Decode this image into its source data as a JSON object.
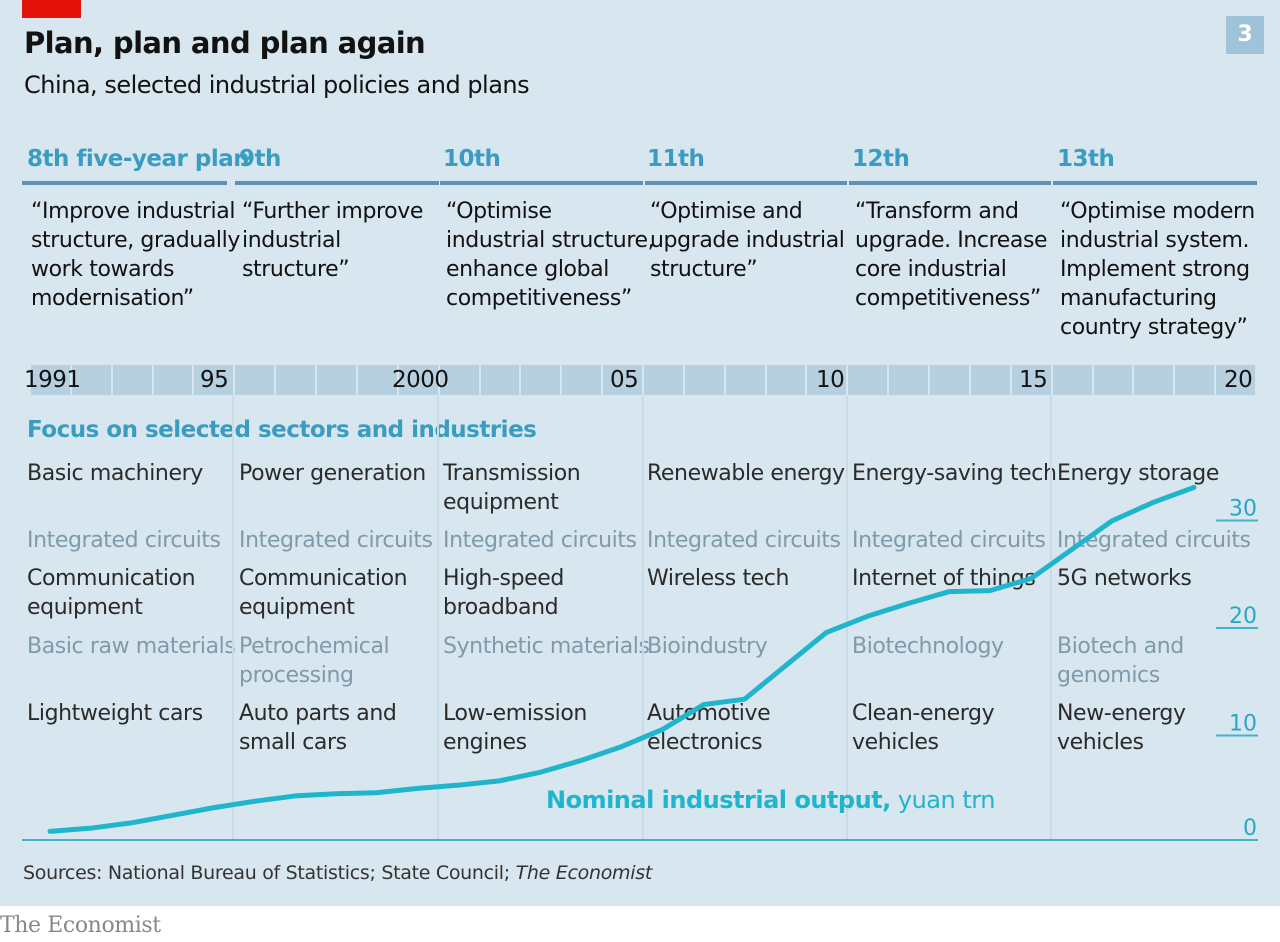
{
  "header": {
    "title": "Plan, plan and plan again",
    "subtitle": "China, selected industrial policies and plans",
    "chart_number": "3"
  },
  "plans": [
    {
      "label": "8th five-year plan",
      "goal": [
        "“Improve industrial",
        "structure, gradually",
        "work towards",
        "modernisation”"
      ]
    },
    {
      "label": "9th",
      "goal": [
        "“Further improve",
        "industrial",
        "structure”"
      ]
    },
    {
      "label": "10th",
      "goal": [
        "“Optimise",
        "industrial structure,",
        "enhance global",
        "competitiveness”"
      ]
    },
    {
      "label": "11th",
      "goal": [
        "“Optimise and",
        "upgrade industrial",
        "structure”"
      ]
    },
    {
      "label": "12th",
      "goal": [
        "“Transform and",
        "upgrade. Increase",
        "core industrial",
        "competitiveness”"
      ]
    },
    {
      "label": "13th",
      "goal": [
        "“Optimise modern",
        "industrial system.",
        "Implement strong",
        "manufacturing",
        "country strategy”"
      ]
    }
  ],
  "timeline_labels": [
    "1991",
    "95",
    "2000",
    "05",
    "10",
    "15",
    "20"
  ],
  "focus": {
    "heading": "Focus on selected sectors and industries",
    "rows": [
      [
        "Basic machinery",
        "Power generation",
        "Transmission\nequipment",
        "Renewable energy",
        "Energy-saving tech",
        "Energy storage"
      ],
      [
        "Integrated circuits",
        "Integrated circuits",
        "Integrated circuits",
        "Integrated circuits",
        "Integrated circuits",
        "Integrated circuits"
      ],
      [
        "Communication\nequipment",
        "Communication\nequipment",
        "High-speed\nbroadband",
        "Wireless tech",
        "Internet of things",
        "5G networks"
      ],
      [
        "Basic raw materials",
        "Petrochemical\nprocessing",
        "Synthetic materials",
        "Bioindustry",
        "Biotechnology",
        "Biotech and\ngenomics"
      ],
      [
        "Lightweight cars",
        "Auto parts and\nsmall cars",
        "Low-emission\nengines",
        "Automotive\nelectronics",
        "Clean-energy\nvehicles",
        "New-energy\nvehicles"
      ]
    ]
  },
  "chart_data": {
    "type": "line",
    "series_label_bold": "Nominal industrial output,",
    "series_label_unit": " yuan trn",
    "color": "#1fb5cc",
    "y_ticks": [
      "0",
      "10",
      "20",
      "30"
    ],
    "ylim": [
      0,
      35
    ],
    "xlim": [
      1991,
      2020
    ],
    "x": [
      1991,
      1992,
      1993,
      1994,
      1995,
      1996,
      1997,
      1998,
      1999,
      2000,
      2001,
      2002,
      2003,
      2004,
      2005,
      2006,
      2007,
      2008,
      2009,
      2010,
      2011,
      2012,
      2013,
      2014,
      2015,
      2016,
      2017,
      2018,
      2019
    ],
    "y": [
      0.8,
      1.1,
      1.6,
      2.3,
      3.0,
      3.6,
      4.1,
      4.3,
      4.4,
      4.8,
      5.1,
      5.5,
      6.3,
      7.4,
      8.7,
      10.3,
      12.6,
      13.1,
      16.2,
      19.3,
      20.8,
      22.0,
      23.1,
      23.2,
      24.3,
      27.0,
      29.7,
      31.4,
      32.8
    ]
  },
  "footer": {
    "sources_prefix": "Sources: National Bureau of Statistics; State Council; ",
    "sources_italic": "The Economist",
    "brand": "The Economist"
  }
}
